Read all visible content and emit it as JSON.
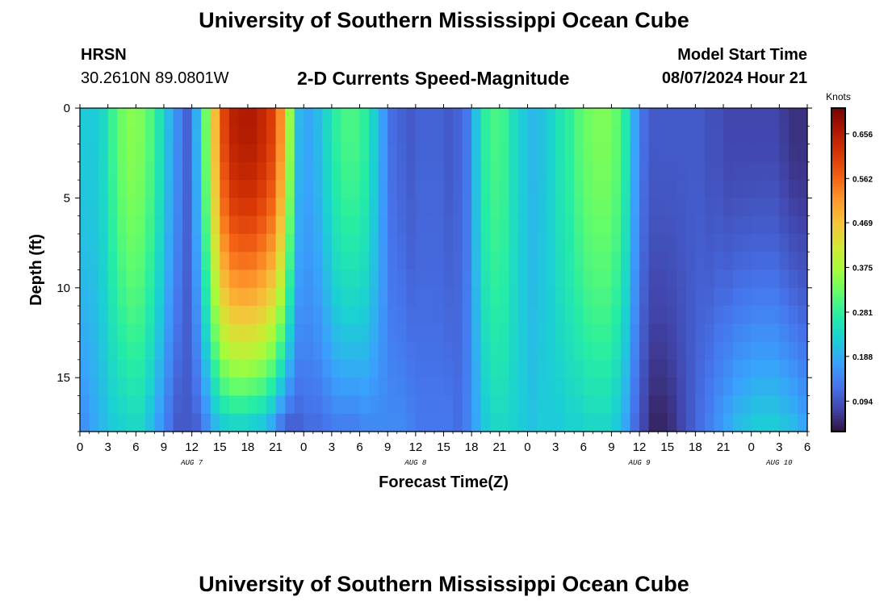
{
  "header": {
    "title": "University of Southern Mississippi Ocean Cube",
    "station": "HRSN",
    "coords": "30.2610N  89.0801W",
    "plot_title": "2-D Currents Speed-Magnitude",
    "model_label": "Model Start Time",
    "model_time": "08/07/2024 Hour 21"
  },
  "footer": {
    "title": "University of Southern Mississippi Ocean Cube"
  },
  "colors": {
    "ramp": [
      "#30123b",
      "#4145ab",
      "#4675ed",
      "#39a2fc",
      "#1bcfd4",
      "#24eca6",
      "#61fc6c",
      "#a4fc3b",
      "#d1e834",
      "#f3c63a",
      "#fe9b2d",
      "#f36315",
      "#d93806",
      "#b11901",
      "#7a0402"
    ]
  },
  "chart_data": {
    "type": "heatmap",
    "title": "2-D Currents Speed-Magnitude",
    "xlabel": "Forecast Time(Z)",
    "ylabel": "Depth (ft)",
    "colorbar_label": "Knots",
    "colorbar_ticks": [
      "0.656",
      "0.562",
      "0.469",
      "0.375",
      "0.281",
      "0.188",
      "0.094"
    ],
    "colorbar_tick_values": [
      0.656,
      0.562,
      0.469,
      0.375,
      0.281,
      0.188,
      0.094
    ],
    "value_range": [
      0.03,
      0.71
    ],
    "x_range_hours": [
      0,
      78
    ],
    "x_tick_hours": [
      0,
      3,
      6,
      9,
      12,
      15,
      18,
      21,
      24,
      27,
      30,
      33,
      36,
      39,
      42,
      45,
      48,
      51,
      54,
      57,
      60,
      63,
      66,
      69,
      72,
      75,
      78
    ],
    "x_tick_labels": [
      "0",
      "3",
      "6",
      "9",
      "12",
      "15",
      "18",
      "21",
      "0",
      "3",
      "6",
      "9",
      "12",
      "15",
      "18",
      "21",
      "0",
      "3",
      "6",
      "9",
      "12",
      "15",
      "18",
      "21",
      "0",
      "3",
      "6"
    ],
    "date_labels": [
      {
        "text": "AUG 7",
        "hour": 12
      },
      {
        "text": "AUG 8",
        "hour": 36
      },
      {
        "text": "AUG 9",
        "hour": 60
      },
      {
        "text": "AUG 10",
        "hour": 75
      }
    ],
    "y_range": [
      0,
      18
    ],
    "y_ticks": [
      0,
      5,
      10,
      15
    ],
    "y_tick_labels": [
      "0",
      "5",
      "10",
      "15"
    ],
    "time_step_hours": 1,
    "depth_levels_ft": [
      0.5,
      1.5,
      2.5,
      3.5,
      4.5,
      5.5,
      6.5,
      7.5,
      8.5,
      9.5,
      10.5,
      11.5,
      12.5,
      13.5,
      14.5,
      15.5,
      16.5,
      17.5
    ],
    "surface_speed_knots": [
      0.22,
      0.22,
      0.24,
      0.29,
      0.33,
      0.35,
      0.34,
      0.31,
      0.26,
      0.2,
      0.15,
      0.11,
      0.19,
      0.33,
      0.48,
      0.6,
      0.65,
      0.66,
      0.66,
      0.64,
      0.61,
      0.53,
      0.36,
      0.2,
      0.18,
      0.2,
      0.24,
      0.28,
      0.3,
      0.3,
      0.28,
      0.23,
      0.17,
      0.12,
      0.11,
      0.1,
      0.11,
      0.11,
      0.11,
      0.1,
      0.11,
      0.13,
      0.21,
      0.28,
      0.3,
      0.29,
      0.25,
      0.22,
      0.2,
      0.21,
      0.23,
      0.26,
      0.28,
      0.31,
      0.33,
      0.34,
      0.34,
      0.32,
      0.27,
      0.18,
      0.12,
      0.1,
      0.1,
      0.1,
      0.1,
      0.1,
      0.1,
      0.09,
      0.09,
      0.08,
      0.08,
      0.08,
      0.08,
      0.08,
      0.08,
      0.07,
      0.06,
      0.06
    ],
    "bottom_speed_knots": [
      0.16,
      0.18,
      0.2,
      0.22,
      0.23,
      0.24,
      0.24,
      0.21,
      0.17,
      0.13,
      0.1,
      0.1,
      0.11,
      0.15,
      0.2,
      0.23,
      0.24,
      0.24,
      0.23,
      0.22,
      0.19,
      0.14,
      0.11,
      0.11,
      0.12,
      0.12,
      0.13,
      0.14,
      0.14,
      0.14,
      0.15,
      0.15,
      0.15,
      0.15,
      0.15,
      0.14,
      0.13,
      0.13,
      0.13,
      0.13,
      0.12,
      0.14,
      0.18,
      0.22,
      0.24,
      0.24,
      0.23,
      0.22,
      0.21,
      0.22,
      0.22,
      0.22,
      0.23,
      0.23,
      0.24,
      0.24,
      0.24,
      0.22,
      0.18,
      0.12,
      0.08,
      0.05,
      0.05,
      0.06,
      0.08,
      0.1,
      0.12,
      0.14,
      0.16,
      0.18,
      0.2,
      0.21,
      0.22,
      0.22,
      0.22,
      0.21,
      0.2,
      0.18
    ]
  }
}
